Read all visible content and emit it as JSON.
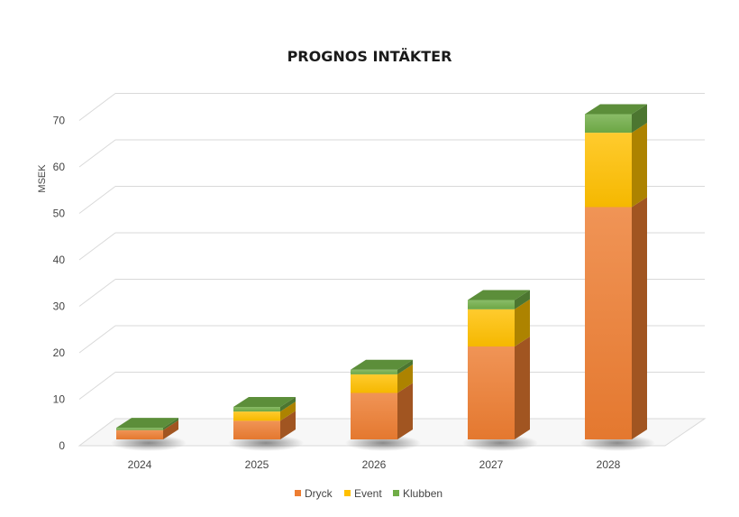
{
  "chart_data": {
    "type": "bar",
    "stacked": true,
    "three_d": true,
    "title": "PROGNOS INTÄKTER",
    "ylabel": "MSEK",
    "xlabel": "",
    "ylim": [
      0,
      70
    ],
    "yticks": [
      0,
      10,
      20,
      30,
      40,
      50,
      60,
      70
    ],
    "categories": [
      "2024",
      "2025",
      "2026",
      "2027",
      "2028"
    ],
    "series": [
      {
        "name": "Dryck",
        "values": [
          2,
          4,
          10,
          20,
          50
        ],
        "color": "#ED7D31"
      },
      {
        "name": "Event",
        "values": [
          0,
          2,
          4,
          8,
          16
        ],
        "color": "#FFC000"
      },
      {
        "name": "Klubben",
        "values": [
          0.5,
          1,
          1,
          2,
          4
        ],
        "color": "#70AD47"
      }
    ],
    "grid": true,
    "legend_position": "bottom"
  }
}
